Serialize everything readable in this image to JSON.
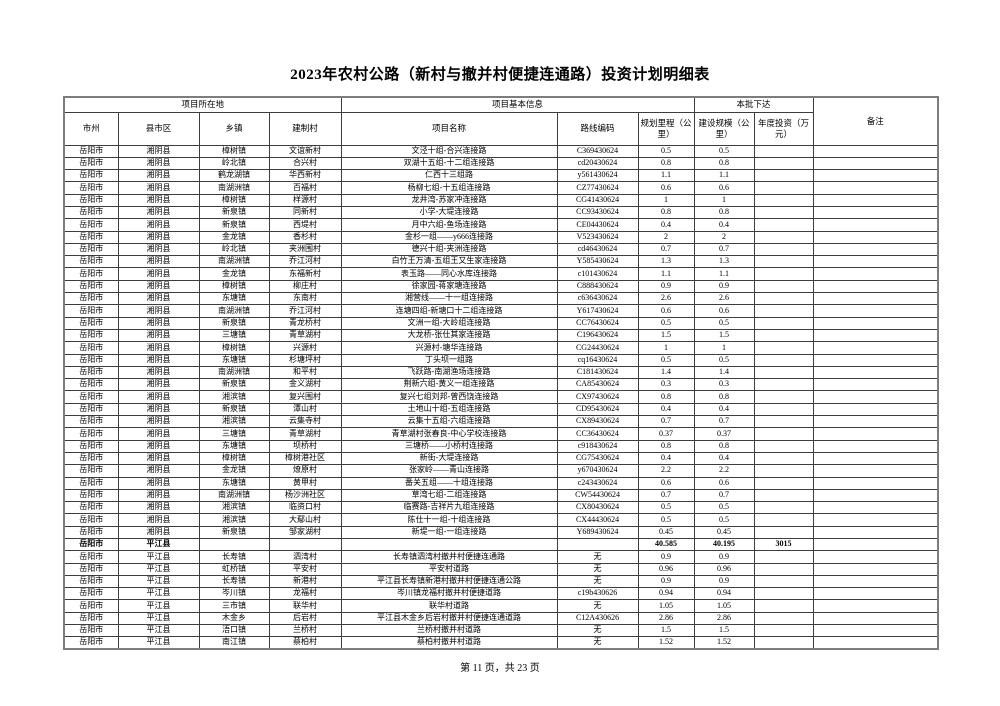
{
  "page": {
    "title": "2023年农村公路（新村与撤并村便捷连通路）投资计划明细表",
    "footer": "第 11 页，共 23 页"
  },
  "table": {
    "header": {
      "groups": {
        "location": "项目所在地",
        "basic_info": "项目基本信息",
        "batch_issued": "本批下达",
        "remark": "备注"
      },
      "columns": [
        "市州",
        "县市区",
        "乡镇",
        "建制村",
        "项目名称",
        "路线编码",
        "规划里程（公里）",
        "建设规模（公里）",
        "年度投资（万元）"
      ]
    },
    "column_keys": [
      "city",
      "county",
      "township",
      "village",
      "project-name",
      "route-code",
      "planned-km",
      "build-km",
      "annual-invest",
      "remark"
    ],
    "bold_rows": [
      32
    ],
    "rows": [
      [
        "岳阳市",
        "湘阴县",
        "樟树镇",
        "文谊新村",
        "文泾十组-合兴连接路",
        "C369430624",
        "0.5",
        "0.5",
        "",
        ""
      ],
      [
        "岳阳市",
        "湘阴县",
        "岭北镇",
        "合兴村",
        "双湖十五组-十二组连接路",
        "cd20430624",
        "0.8",
        "0.8",
        "",
        ""
      ],
      [
        "岳阳市",
        "湘阴县",
        "鹤龙湖镇",
        "华西新村",
        "仁西十三组路",
        "y561430624",
        "1.1",
        "1.1",
        "",
        ""
      ],
      [
        "岳阳市",
        "湘阴县",
        "南湖洲镇",
        "百福村",
        "杨柳七组-十五组连接路",
        "CZ77430624",
        "0.6",
        "0.6",
        "",
        ""
      ],
      [
        "岳阳市",
        "湘阴县",
        "樟树镇",
        "样源村",
        "龙井湾-苏家冲连接路",
        "CG41430624",
        "1",
        "1",
        "",
        ""
      ],
      [
        "岳阳市",
        "湘阴县",
        "新泉镇",
        "同新村",
        "小学-大堤连接路",
        "CC93430624",
        "0.8",
        "0.8",
        "",
        ""
      ],
      [
        "岳阳市",
        "湘阴县",
        "新泉镇",
        "西堤村",
        "月中六组-鱼场连接路",
        "CE04430624",
        "0.4",
        "0.4",
        "",
        ""
      ],
      [
        "岳阳市",
        "湘阴县",
        "金龙镇",
        "香杉村",
        "金杉一组——y666连接路",
        "V523430624",
        "2",
        "2",
        "",
        ""
      ],
      [
        "岳阳市",
        "湘阴县",
        "岭北镇",
        "夹洲围村",
        "德兴十组-夹洲连接路",
        "cd46430624",
        "0.7",
        "0.7",
        "",
        ""
      ],
      [
        "岳阳市",
        "湘阴县",
        "南湖洲镇",
        "乔江河村",
        "白竹王万清-五组王又生家连接路",
        "Y585430624",
        "1.3",
        "1.3",
        "",
        ""
      ],
      [
        "岳阳市",
        "湘阴县",
        "金龙镇",
        "东福新村",
        "表玉路——同心水库连接路",
        "c101430624",
        "1.1",
        "1.1",
        "",
        ""
      ],
      [
        "岳阳市",
        "湘阴县",
        "樟树镇",
        "柳庄村",
        "徐家园-蒋家塘连接路",
        "C888430624",
        "0.9",
        "0.9",
        "",
        ""
      ],
      [
        "岳阳市",
        "湘阴县",
        "东塘镇",
        "东南村",
        "湘营线——十一组连接路",
        "c636430624",
        "2.6",
        "2.6",
        "",
        ""
      ],
      [
        "岳阳市",
        "湘阴县",
        "南湖洲镇",
        "乔江河村",
        "连塘四组-新塘口十二组连接路",
        "Y617430624",
        "0.6",
        "0.6",
        "",
        ""
      ],
      [
        "岳阳市",
        "湘阴县",
        "新泉镇",
        "青龙桥村",
        "文洲一组-大岭组连接路",
        "CC76430624",
        "0.5",
        "0.5",
        "",
        ""
      ],
      [
        "岳阳市",
        "湘阴县",
        "三塘镇",
        "青草湖村",
        "大龙桥-张仕其家连接路",
        "C196430624",
        "1.5",
        "1.5",
        "",
        ""
      ],
      [
        "岳阳市",
        "湘阴县",
        "樟树镇",
        "兴源村",
        "兴源村-塘华连接路",
        "CG24430624",
        "1",
        "1",
        "",
        ""
      ],
      [
        "岳阳市",
        "湘阴县",
        "东塘镇",
        "杉塘坪村",
        "丁头坝一组路",
        "cq16430624",
        "0.5",
        "0.5",
        "",
        ""
      ],
      [
        "岳阳市",
        "湘阴县",
        "南湖洲镇",
        "和平村",
        "飞跃路-南湖渔场连接路",
        "C181430624",
        "1.4",
        "1.4",
        "",
        ""
      ],
      [
        "岳阳市",
        "湘阴县",
        "新泉镇",
        "金义湖村",
        "荆新六组-黄义一组连接路",
        "CA85430624",
        "0.3",
        "0.3",
        "",
        ""
      ],
      [
        "岳阳市",
        "湘阴县",
        "湘滨镇",
        "复兴围村",
        "复兴七组刘邦-曾西饶连接路",
        "CX97430624",
        "0.8",
        "0.8",
        "",
        ""
      ],
      [
        "岳阳市",
        "湘阴县",
        "新泉镇",
        "潭山村",
        "土地山十组-五组连接路",
        "CD95430624",
        "0.4",
        "0.4",
        "",
        ""
      ],
      [
        "岳阳市",
        "湘阴县",
        "湘滨镇",
        "云集寺村",
        "云集十五组-六组连接路",
        "CX89430624",
        "0.7",
        "0.7",
        "",
        ""
      ],
      [
        "岳阳市",
        "湘阴县",
        "三塘镇",
        "青草湖村",
        "青草湖村张春良-中心学校连接路",
        "CC36430624",
        "0.37",
        "0.37",
        "",
        ""
      ],
      [
        "岳阳市",
        "湘阴县",
        "东塘镇",
        "坝桥村",
        "三塘桥——小桥村连接路",
        "c918430624",
        "0.8",
        "0.8",
        "",
        ""
      ],
      [
        "岳阳市",
        "湘阴县",
        "樟树镇",
        "樟树港社区",
        "新街-大堤连接路",
        "CG75430624",
        "0.4",
        "0.4",
        "",
        ""
      ],
      [
        "岳阳市",
        "湘阴县",
        "金龙镇",
        "燎原村",
        "张家岭——青山连接路",
        "y670430624",
        "2.2",
        "2.2",
        "",
        ""
      ],
      [
        "岳阳市",
        "湘阴县",
        "东塘镇",
        "黄甲村",
        "番关五组——十组连接路",
        "c243430624",
        "0.6",
        "0.6",
        "",
        ""
      ],
      [
        "岳阳市",
        "湘阴县",
        "南湖洲镇",
        "杨沙洲社区",
        "草湾七组-二组连接路",
        "CW54430624",
        "0.7",
        "0.7",
        "",
        ""
      ],
      [
        "岳阳市",
        "湘阴县",
        "湘滨镇",
        "临资口村",
        "临赛路-吉祥片九组连接路",
        "CX80430624",
        "0.5",
        "0.5",
        "",
        ""
      ],
      [
        "岳阳市",
        "湘阴县",
        "湘滨镇",
        "大鄢山村",
        "陈仕十一组-十组连接路",
        "CX44430624",
        "0.5",
        "0.5",
        "",
        ""
      ],
      [
        "岳阳市",
        "湘阴县",
        "新泉镇",
        "邹家湖村",
        "新堤一组-一组连接路",
        "Y689430624",
        "0.45",
        "0.45",
        "",
        ""
      ],
      [
        "岳阳市",
        "平江县",
        "",
        "",
        "",
        "",
        "40.585",
        "40.195",
        "3015",
        ""
      ],
      [
        "岳阳市",
        "平江县",
        "长寿镇",
        "泗湾村",
        "长寿镇泗湾村撤并村便捷连通路",
        "无",
        "0.9",
        "0.9",
        "",
        ""
      ],
      [
        "岳阳市",
        "平江县",
        "虹桥镇",
        "平安村",
        "平安村道路",
        "无",
        "0.96",
        "0.96",
        "",
        ""
      ],
      [
        "岳阳市",
        "平江县",
        "长寿镇",
        "新港村",
        "平江县长寿镇新港村撤并村便捷连通公路",
        "无",
        "0.9",
        "0.9",
        "",
        ""
      ],
      [
        "岳阳市",
        "平江县",
        "岑川镇",
        "龙福村",
        "岑川镇龙福村撤并村便捷道路",
        "c19b430626",
        "0.94",
        "0.94",
        "",
        ""
      ],
      [
        "岳阳市",
        "平江县",
        "三市镇",
        "联华村",
        "联华村道路",
        "无",
        "1.05",
        "1.05",
        "",
        ""
      ],
      [
        "岳阳市",
        "平江县",
        "木金乡",
        "后岩村",
        "平江县木金乡后岩村撤并村便捷连通道路",
        "C12A430626",
        "2.86",
        "2.86",
        "",
        ""
      ],
      [
        "岳阳市",
        "平江县",
        "浯口镇",
        "兰桥村",
        "兰桥村撤并村道路",
        "无",
        "1.5",
        "1.5",
        "",
        ""
      ],
      [
        "岳阳市",
        "平江县",
        "南江镇",
        "蔡柏村",
        "蔡柏村撤并村道路",
        "无",
        "1.52",
        "1.52",
        "",
        ""
      ]
    ]
  }
}
